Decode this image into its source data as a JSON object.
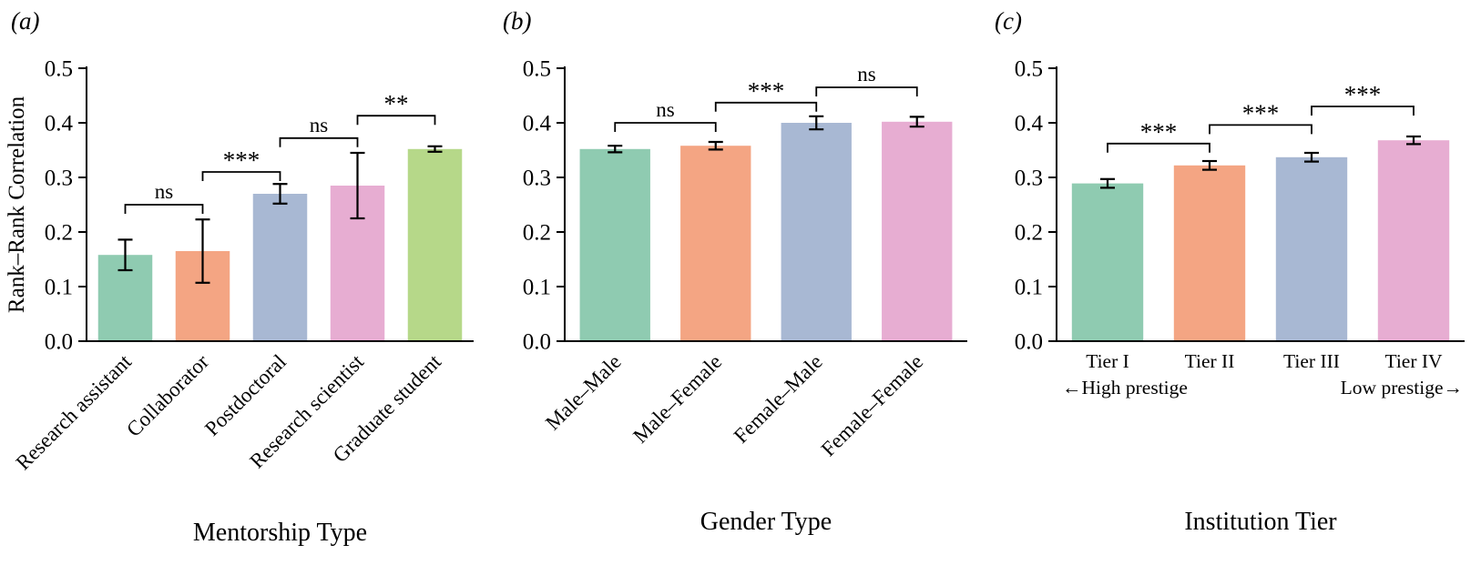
{
  "figure": {
    "background": "#ffffff",
    "axis_color": "#000000",
    "error_bar_color": "#000000"
  },
  "chart_data": [
    {
      "type": "bar",
      "panel_label": "(a)",
      "xlabel": "Mentorship Type",
      "ylabel": "Rank–Rank Correlation",
      "ylim": [
        0,
        0.5
      ],
      "yticks": [
        0.0,
        0.1,
        0.2,
        0.3,
        0.4,
        0.5
      ],
      "grid": false,
      "tick_style": "rotated",
      "categories": [
        "Research assistant",
        "Collaborator",
        "Postdoctoral",
        "Research scientist",
        "Graduate student"
      ],
      "values": [
        0.158,
        0.165,
        0.27,
        0.285,
        0.352
      ],
      "errors": [
        0.028,
        0.058,
        0.018,
        0.06,
        0.005
      ],
      "bar_colors": [
        "#8fcbb1",
        "#f4a583",
        "#a8b8d3",
        "#e7add2",
        "#b6d889"
      ],
      "significance": [
        {
          "from": 0,
          "to": 1,
          "label": "ns",
          "y": 0.25
        },
        {
          "from": 1,
          "to": 2,
          "label": "***",
          "y": 0.31
        },
        {
          "from": 2,
          "to": 3,
          "label": "ns",
          "y": 0.372
        },
        {
          "from": 3,
          "to": 4,
          "label": "**",
          "y": 0.413
        }
      ]
    },
    {
      "type": "bar",
      "panel_label": "(b)",
      "xlabel": "Gender Type",
      "ylabel": "",
      "ylim": [
        0,
        0.5
      ],
      "yticks": [
        0.0,
        0.1,
        0.2,
        0.3,
        0.4,
        0.5
      ],
      "grid": false,
      "tick_style": "rotated",
      "categories": [
        "Male–Male",
        "Male–Female",
        "Female–Male",
        "Female–Female"
      ],
      "values": [
        0.352,
        0.358,
        0.4,
        0.402
      ],
      "errors": [
        0.006,
        0.007,
        0.012,
        0.009
      ],
      "bar_colors": [
        "#8fcbb1",
        "#f4a583",
        "#a8b8d3",
        "#e7add2"
      ],
      "significance": [
        {
          "from": 0,
          "to": 1,
          "label": "ns",
          "y": 0.4
        },
        {
          "from": 1,
          "to": 2,
          "label": "***",
          "y": 0.437
        },
        {
          "from": 2,
          "to": 3,
          "label": "ns",
          "y": 0.465
        }
      ]
    },
    {
      "type": "bar",
      "panel_label": "(c)",
      "xlabel": "Institution Tier",
      "ylabel": "",
      "ylim": [
        0,
        0.5
      ],
      "yticks": [
        0.0,
        0.1,
        0.2,
        0.3,
        0.4,
        0.5
      ],
      "grid": false,
      "tick_style": "horizontal",
      "categories": [
        "Tier I",
        "Tier II",
        "Tier III",
        "Tier IV"
      ],
      "values": [
        0.289,
        0.322,
        0.337,
        0.368
      ],
      "errors": [
        0.008,
        0.008,
        0.008,
        0.007
      ],
      "bar_colors": [
        "#8fcbb1",
        "#f4a583",
        "#a8b8d3",
        "#e7add2"
      ],
      "significance": [
        {
          "from": 0,
          "to": 1,
          "label": "***",
          "y": 0.362
        },
        {
          "from": 1,
          "to": 2,
          "label": "***",
          "y": 0.396
        },
        {
          "from": 2,
          "to": 3,
          "label": "***",
          "y": 0.43
        }
      ],
      "annotations": [
        {
          "text": "←High prestige",
          "side": "left"
        },
        {
          "text": "Low prestige→",
          "side": "right"
        }
      ]
    }
  ]
}
